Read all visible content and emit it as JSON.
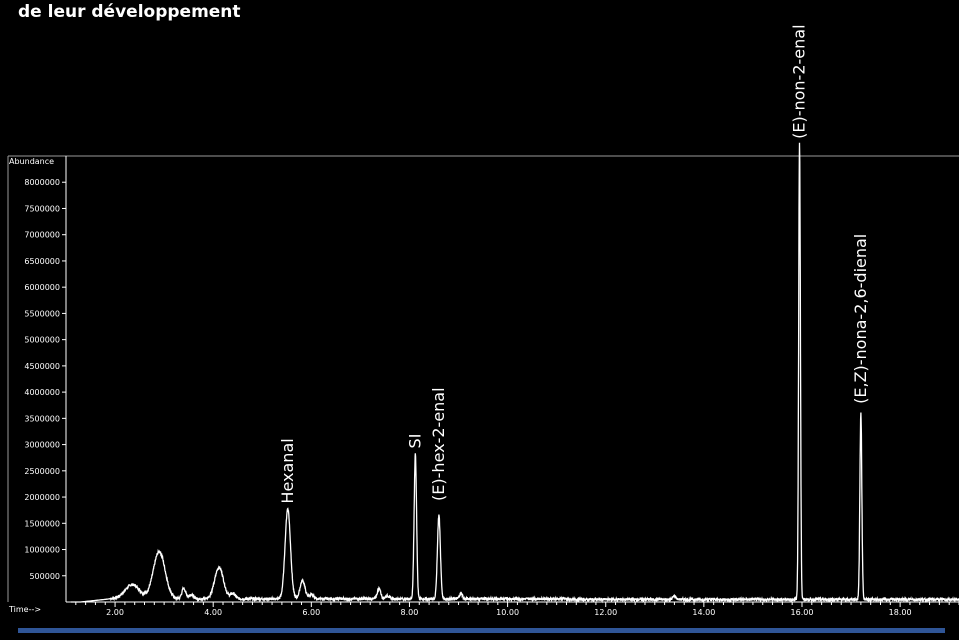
{
  "page": {
    "heading": "de leur développement"
  },
  "colors": {
    "background": "#000000",
    "plot_background": "#000000",
    "trace": "#ffffff",
    "frame": "#9a9a9a",
    "bottom_bar": "#2f5597"
  },
  "chart_data": {
    "type": "line",
    "title": "",
    "xlabel": "Time-->",
    "ylabel": "Abundance",
    "xlim": [
      1.0,
      19.2
    ],
    "ylim": [
      0,
      8500000
    ],
    "x_ticks": [
      2.0,
      4.0,
      6.0,
      8.0,
      10.0,
      12.0,
      14.0,
      16.0,
      18.0
    ],
    "x_tick_labels": [
      "2.00",
      "4.00",
      "6.00",
      "8.00",
      "10.00",
      "12.00",
      "14.00",
      "16.00",
      "18.00"
    ],
    "y_ticks": [
      500000,
      1000000,
      1500000,
      2000000,
      2500000,
      3000000,
      3500000,
      4000000,
      4500000,
      5000000,
      5500000,
      6000000,
      6500000,
      7000000,
      7500000,
      8000000
    ],
    "y_tick_labels": [
      "500000",
      "1000000",
      "1500000",
      "2000000",
      "2500000",
      "3000000",
      "3500000",
      "4000000",
      "4500000",
      "5000000",
      "5500000",
      "6000000",
      "6500000",
      "7000000",
      "7500000",
      "8000000"
    ],
    "grid": false,
    "baseline": 60000,
    "peaks": [
      {
        "rt": 2.35,
        "height": 270000,
        "width": 0.15
      },
      {
        "rt": 2.9,
        "height": 900000,
        "width": 0.12
      },
      {
        "rt": 3.4,
        "height": 200000,
        "width": 0.04
      },
      {
        "rt": 3.55,
        "height": 80000,
        "width": 0.05
      },
      {
        "rt": 4.12,
        "height": 600000,
        "width": 0.09
      },
      {
        "rt": 4.4,
        "height": 100000,
        "width": 0.05
      },
      {
        "rt": 5.52,
        "height": 1720000,
        "width": 0.055
      },
      {
        "rt": 5.82,
        "height": 350000,
        "width": 0.05
      },
      {
        "rt": 6.0,
        "height": 80000,
        "width": 0.05
      },
      {
        "rt": 7.38,
        "height": 200000,
        "width": 0.035
      },
      {
        "rt": 7.55,
        "height": 60000,
        "width": 0.04
      },
      {
        "rt": 8.12,
        "height": 2750000,
        "width": 0.025
      },
      {
        "rt": 8.6,
        "height": 1600000,
        "width": 0.03
      },
      {
        "rt": 9.05,
        "height": 110000,
        "width": 0.03
      },
      {
        "rt": 13.4,
        "height": 70000,
        "width": 0.03
      },
      {
        "rt": 15.95,
        "height": 8700000,
        "width": 0.018
      },
      {
        "rt": 17.2,
        "height": 3550000,
        "width": 0.02
      }
    ],
    "annotations": [
      {
        "text": "Hexanal",
        "x": 5.52,
        "y": 1800000
      },
      {
        "text": "SI",
        "x": 8.12,
        "y": 2850000
      },
      {
        "text": "(E)-hex-2-enal",
        "x": 8.6,
        "y": 1850000
      },
      {
        "text": "(E)-non-2-enal",
        "x": 15.95,
        "y": 8750000
      },
      {
        "text": "(E,Z)-nona-2,6-dienal",
        "x": 17.2,
        "y": 3700000
      }
    ]
  }
}
